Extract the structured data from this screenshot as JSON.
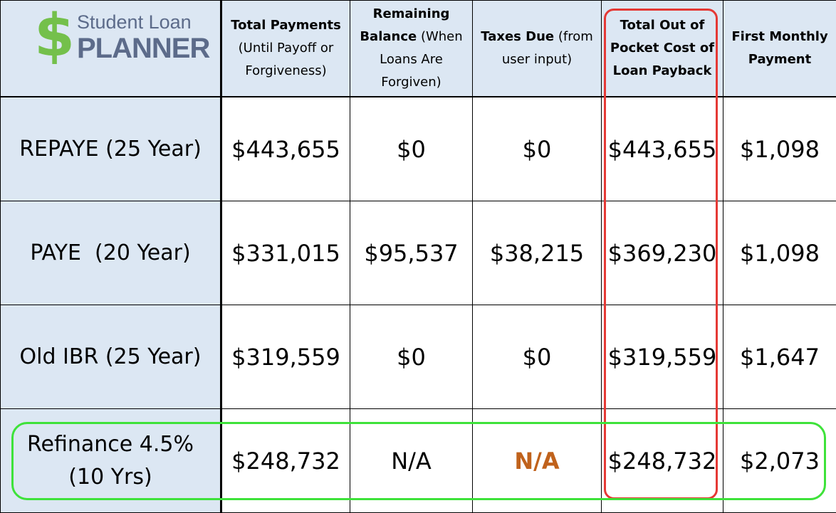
{
  "logo": {
    "symbol": "$",
    "line1": "Student Loan",
    "line2": "PLANNER"
  },
  "headers": [
    {
      "bold": "Total Payments",
      "rest": "(Until Payoff or Forgiveness)"
    },
    {
      "bold": "Remaining Balance",
      "rest": "(When Loans Are Forgiven)"
    },
    {
      "bold": "Taxes Due",
      "rest": "(from user input)"
    },
    {
      "bold": "Total Out of Pocket Cost of Loan Payback",
      "rest": ""
    },
    {
      "bold": "First Monthly Payment",
      "rest": ""
    }
  ],
  "chart_data": {
    "type": "table",
    "columns": [
      "Total Payments (Until Payoff or Forgiveness)",
      "Remaining Balance (When Loans Are Forgiven)",
      "Taxes Due (from user input)",
      "Total Out of Pocket Cost of Loan Payback",
      "First Monthly Payment"
    ],
    "rows": [
      {
        "label": "REPAYE (25 Year)",
        "values": [
          "$443,655",
          "$0",
          "$0",
          "$443,655",
          "$1,098"
        ]
      },
      {
        "label": "PAYE  (20 Year)",
        "values": [
          "$331,015",
          "$95,537",
          "$38,215",
          "$369,230",
          "$1,098"
        ]
      },
      {
        "label": "Old IBR (25 Year)",
        "values": [
          "$319,559",
          "$0",
          "$0",
          "$319,559",
          "$1,647"
        ]
      },
      {
        "label_line1": "Refinance 4.5%",
        "label_line2": "(10 Yrs)",
        "values": [
          "$248,732",
          "N/A",
          "N/A",
          "$248,732",
          "$2,073"
        ]
      }
    ],
    "highlights": {
      "column_highlight_color": "#e53935",
      "row_highlight_color": "#3ee23a",
      "na_accent_color": "#c0621c"
    }
  }
}
